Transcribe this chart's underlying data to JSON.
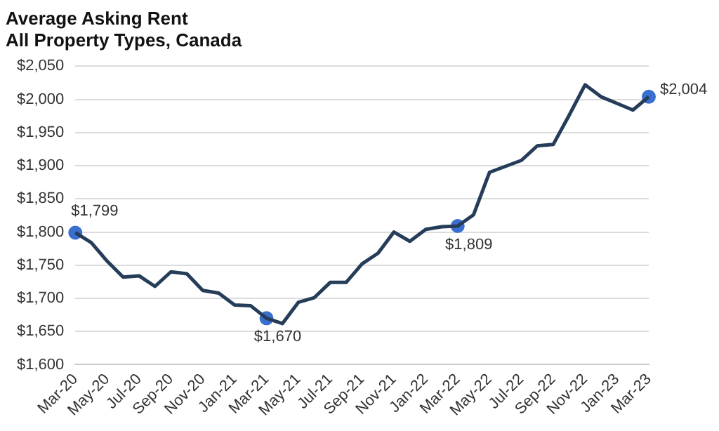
{
  "chart_data": {
    "type": "line",
    "title": "Average Asking Rent",
    "subtitle": "All Property Types, Canada",
    "categories": [
      "Mar-20",
      null,
      "May-20",
      null,
      "Jul-20",
      null,
      "Sep-20",
      null,
      "Nov-20",
      null,
      "Jan-21",
      null,
      "Mar-21",
      null,
      "May-21",
      null,
      "Jul-21",
      null,
      "Sep-21",
      null,
      "Nov-21",
      null,
      "Jan-22",
      null,
      "Mar-22",
      null,
      "May-22",
      null,
      "Jul-22",
      null,
      "Sep-22",
      null,
      "Nov-22",
      null,
      "Jan-23",
      null,
      "Mar-23"
    ],
    "series": [
      {
        "color": "#263d5a",
        "values": [
          1799,
          1784,
          1756,
          1732,
          1734,
          1718,
          1740,
          1737,
          1712,
          1708,
          1690,
          1689,
          1670,
          1662,
          1694,
          1701,
          1724,
          1724,
          1752,
          1768,
          1800,
          1786,
          1804,
          1808,
          1809,
          1826,
          1890,
          1899,
          1908,
          1930,
          1932,
          1976,
          2022,
          2004,
          1994,
          1984,
          2004
        ]
      },
      {
        "type": "scatter",
        "color": "#3a6fd0",
        "x": [
          "Mar-20",
          "Mar-21",
          "Mar-22",
          "Mar-23"
        ],
        "values": [
          1799,
          1670,
          1809,
          2004
        ],
        "value_labels": [
          "$1,799",
          "$1,670",
          "$1,809",
          "$2,004"
        ]
      }
    ],
    "ylim": [
      1600,
      2050
    ],
    "yticks": [
      {
        "value": 1600,
        "label": "$1,600"
      },
      {
        "value": 1650,
        "label": "$1,650"
      },
      {
        "value": 1700,
        "label": "$1,700"
      },
      {
        "value": 1750,
        "label": "$1,750"
      },
      {
        "value": 1800,
        "label": "$1,800"
      },
      {
        "value": 1850,
        "label": "$1,850"
      },
      {
        "value": 1900,
        "label": "$1,900"
      },
      {
        "value": 1950,
        "label": "$1,950"
      },
      {
        "value": 2000,
        "label": "$2,000"
      },
      {
        "value": 2050,
        "label": "$2,050"
      }
    ],
    "grid": "y",
    "legend": false
  }
}
